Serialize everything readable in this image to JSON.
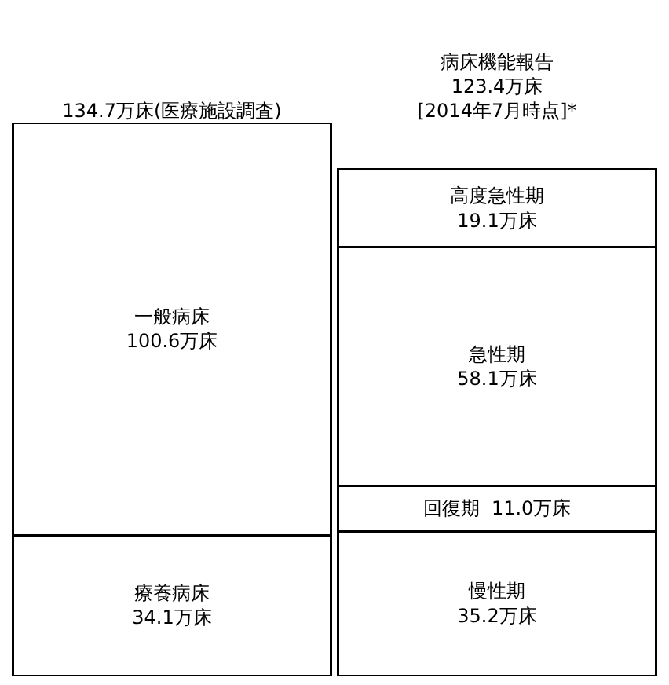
{
  "chart_data": {
    "type": "bar",
    "stacked": true,
    "categories": [
      "134.7万床(医療施設調査)",
      "病床機能報告\n123.4万床\n[2014年7月時点]*"
    ],
    "ylim": [
      0,
      134.7
    ],
    "legend": false,
    "series": [
      {
        "name": "療養病床",
        "color": "#ffffff",
        "values": [
          34.1,
          null
        ],
        "value_labels": [
          "34.1万床",
          null
        ]
      },
      {
        "name": "一般病床",
        "color": "#ffffff",
        "values": [
          100.6,
          null
        ],
        "value_labels": [
          "100.6万床",
          null
        ]
      },
      {
        "name": "慢性期",
        "color": "#ffffff",
        "values": [
          null,
          35.2
        ],
        "value_labels": [
          null,
          "35.2万床"
        ]
      },
      {
        "name": "回復期",
        "color": "#ffffff",
        "values": [
          null,
          11.0
        ],
        "value_labels": [
          null,
          "11.0万床"
        ]
      },
      {
        "name": "急性期",
        "color": "#ffffff",
        "values": [
          null,
          58.1
        ],
        "value_labels": [
          null,
          "58.1万床"
        ]
      },
      {
        "name": "高度急性期",
        "color": "#ffffff",
        "values": [
          null,
          19.1
        ],
        "value_labels": [
          null,
          "19.1万床"
        ]
      }
    ]
  }
}
